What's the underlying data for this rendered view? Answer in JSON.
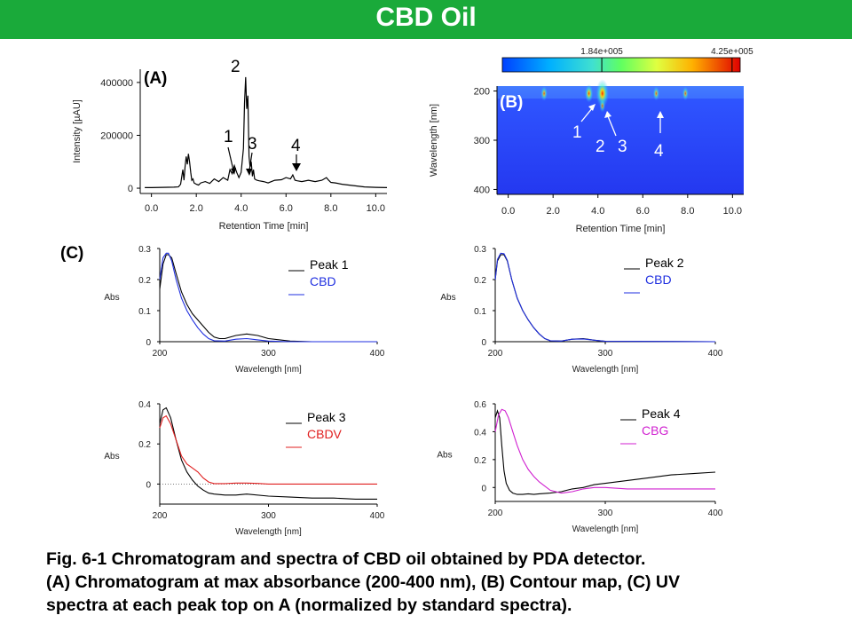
{
  "title": "CBD Oil",
  "caption": {
    "line1": "Fig. 6-1  Chromatogram and spectra of CBD oil obtained by PDA detector.",
    "line2": "(A) Chromatogram at max absorbance (200-400 nm), (B) Contour map, (C) UV",
    "line3": "spectra at each peak top on A (normalized by standard spectra)."
  },
  "panel_a": {
    "tag": "(A)",
    "peak_labels": [
      "1",
      "2",
      "3",
      "4"
    ],
    "colors": {
      "trace": "#000000"
    }
  },
  "panel_b": {
    "tag": "(B)",
    "colorbar_ticks": [
      "1.84e+005",
      "4.25e+005"
    ],
    "peak_labels": [
      "1",
      "2",
      "3",
      "4"
    ]
  },
  "panel_c": {
    "tag": "(C)"
  },
  "chart_data": [
    {
      "id": "chromatogram",
      "type": "line",
      "xlabel": "Retention Time [min]",
      "ylabel": "Intensity [µAU]",
      "xlim": [
        -0.5,
        10.5
      ],
      "ylim": [
        -20000,
        450000
      ],
      "xticks": [
        "0.0",
        "2.0",
        "4.0",
        "6.0",
        "8.0",
        "10.0"
      ],
      "yticks": [
        "0",
        "200000",
        "400000"
      ],
      "ytick_values": [
        0,
        200000,
        400000
      ],
      "xtick_values": [
        0,
        2,
        4,
        6,
        8,
        10
      ],
      "grid": false,
      "x": [
        -0.3,
        0.0,
        0.5,
        1.0,
        1.2,
        1.3,
        1.4,
        1.45,
        1.5,
        1.55,
        1.6,
        1.65,
        1.7,
        1.75,
        1.8,
        1.85,
        1.9,
        2.0,
        2.1,
        2.2,
        2.4,
        2.6,
        2.8,
        3.0,
        3.2,
        3.4,
        3.5,
        3.6,
        3.7,
        3.8,
        3.9,
        4.0,
        4.1,
        4.15,
        4.2,
        4.25,
        4.3,
        4.35,
        4.4,
        4.45,
        4.5,
        4.55,
        4.6,
        4.7,
        4.8,
        5.0,
        5.2,
        5.5,
        5.8,
        6.0,
        6.2,
        6.3,
        6.4,
        6.5,
        6.7,
        7.0,
        7.3,
        7.6,
        7.8,
        7.9,
        8.0,
        8.2,
        8.5,
        9.0,
        9.5,
        10.0,
        10.5
      ],
      "y": [
        2000,
        2000,
        3000,
        4000,
        5000,
        15000,
        70000,
        30000,
        80000,
        120000,
        90000,
        130000,
        100000,
        60000,
        30000,
        35000,
        20000,
        15000,
        12000,
        20000,
        25000,
        18000,
        35000,
        25000,
        40000,
        30000,
        70000,
        55000,
        85000,
        60000,
        40000,
        60000,
        150000,
        320000,
        420000,
        300000,
        350000,
        120000,
        80000,
        100000,
        45000,
        70000,
        35000,
        30000,
        28000,
        25000,
        20000,
        30000,
        32000,
        40000,
        35000,
        50000,
        30000,
        28000,
        25000,
        30000,
        25000,
        30000,
        40000,
        30000,
        22000,
        20000,
        15000,
        10000,
        5000,
        3000,
        2000
      ]
    },
    {
      "id": "contour",
      "type": "heatmap",
      "xlabel": "Retention Time [min]",
      "ylabel": "Wavelength [nm]",
      "xlim": [
        -0.5,
        10.5
      ],
      "ylim": [
        190,
        410
      ],
      "xticks": [
        "0.0",
        "2.0",
        "4.0",
        "6.0",
        "8.0",
        "10.0"
      ],
      "yticks": [
        "200",
        "300",
        "400"
      ],
      "xtick_values": [
        0,
        2,
        4,
        6,
        8,
        10
      ],
      "ytick_values": [
        200,
        300,
        400
      ],
      "colorbar_range": [
        0,
        440000.0
      ],
      "colorbar_ticks": [
        184000.0,
        425000.0
      ],
      "hotspots": [
        {
          "x": 4.2,
          "y": 205,
          "value": 440000.0
        },
        {
          "x": 3.6,
          "y": 205,
          "value": 230000.0
        },
        {
          "x": 1.6,
          "y": 205,
          "value": 160000.0
        },
        {
          "x": 4.2,
          "y": 230,
          "value": 130000.0
        },
        {
          "x": 6.6,
          "y": 205,
          "value": 150000.0
        },
        {
          "x": 7.9,
          "y": 205,
          "value": 140000.0
        }
      ]
    },
    {
      "id": "uv-peak1",
      "type": "line",
      "xlabel": "Wavelength [nm]",
      "ylabel": "Abs",
      "xlim": [
        200,
        400
      ],
      "ylim": [
        0,
        0.3
      ],
      "xticks": [
        "200",
        "300",
        "400"
      ],
      "yticks": [
        "0",
        "0.1",
        "0.2",
        "0.3"
      ],
      "xtick_values": [
        200,
        300,
        400
      ],
      "ytick_values": [
        0,
        0.1,
        0.2,
        0.3
      ],
      "series": [
        {
          "name": "Peak 1",
          "color": "#000000",
          "x": [
            200,
            203,
            206,
            208,
            211,
            215,
            220,
            225,
            230,
            235,
            240,
            245,
            250,
            255,
            260,
            270,
            280,
            290,
            300,
            320,
            340,
            360,
            400
          ],
          "y": [
            0.17,
            0.25,
            0.28,
            0.28,
            0.27,
            0.22,
            0.16,
            0.12,
            0.09,
            0.07,
            0.05,
            0.03,
            0.015,
            0.01,
            0.01,
            0.02,
            0.025,
            0.02,
            0.01,
            0.002,
            0,
            0,
            0
          ]
        },
        {
          "name": "CBD",
          "color": "#1f2fe0",
          "x": [
            200,
            203,
            206,
            208,
            211,
            215,
            220,
            225,
            230,
            235,
            240,
            245,
            250,
            260,
            270,
            280,
            290,
            300,
            320,
            340,
            400
          ],
          "y": [
            0.2,
            0.27,
            0.285,
            0.285,
            0.26,
            0.2,
            0.14,
            0.1,
            0.07,
            0.045,
            0.025,
            0.01,
            0.003,
            0.002,
            0.008,
            0.01,
            0.006,
            0.002,
            0,
            0,
            0
          ]
        }
      ]
    },
    {
      "id": "uv-peak2",
      "type": "line",
      "xlabel": "Wavelength [nm]",
      "ylabel": "Abs",
      "xlim": [
        200,
        400
      ],
      "ylim": [
        0,
        0.3
      ],
      "xticks": [
        "200",
        "300",
        "400"
      ],
      "yticks": [
        "0",
        "0.1",
        "0.2",
        "0.3"
      ],
      "xtick_values": [
        200,
        300,
        400
      ],
      "ytick_values": [
        0,
        0.1,
        0.2,
        0.3
      ],
      "series": [
        {
          "name": "Peak 2",
          "color": "#000000",
          "x": [
            200,
            202,
            205,
            208,
            211,
            215,
            220,
            225,
            230,
            235,
            240,
            245,
            250,
            260,
            270,
            280,
            290,
            300,
            400
          ],
          "y": [
            0.2,
            0.26,
            0.28,
            0.28,
            0.26,
            0.2,
            0.14,
            0.1,
            0.07,
            0.045,
            0.025,
            0.01,
            0.003,
            0.002,
            0.008,
            0.01,
            0.005,
            0.001,
            0
          ]
        },
        {
          "name": "CBD",
          "color": "#1f2fe0",
          "x": [
            200,
            202,
            205,
            208,
            211,
            215,
            220,
            225,
            230,
            235,
            240,
            245,
            250,
            260,
            270,
            280,
            290,
            300,
            400
          ],
          "y": [
            0.2,
            0.265,
            0.285,
            0.283,
            0.262,
            0.2,
            0.14,
            0.1,
            0.07,
            0.045,
            0.025,
            0.01,
            0.003,
            0.002,
            0.008,
            0.009,
            0.005,
            0.001,
            0
          ]
        }
      ]
    },
    {
      "id": "uv-peak3",
      "type": "line",
      "xlabel": "Wavelength [nm]",
      "ylabel": "Abs",
      "xlim": [
        200,
        400
      ],
      "ylim": [
        -0.1,
        0.4
      ],
      "xticks": [
        "200",
        "300",
        "400"
      ],
      "yticks": [
        "0",
        "0.2",
        "0.4"
      ],
      "xtick_values": [
        200,
        300,
        400
      ],
      "ytick_values": [
        0,
        0.2,
        0.4
      ],
      "zero_line": true,
      "series": [
        {
          "name": "Peak 3",
          "color": "#000000",
          "x": [
            200,
            203,
            206,
            210,
            215,
            220,
            225,
            230,
            235,
            240,
            245,
            250,
            260,
            270,
            280,
            300,
            320,
            340,
            360,
            380,
            400
          ],
          "y": [
            0.3,
            0.37,
            0.38,
            0.33,
            0.22,
            0.12,
            0.06,
            0.02,
            -0.01,
            -0.03,
            -0.045,
            -0.05,
            -0.055,
            -0.055,
            -0.05,
            -0.06,
            -0.065,
            -0.07,
            -0.07,
            -0.075,
            -0.075
          ]
        },
        {
          "name": "CBDV",
          "color": "#e01f1f",
          "x": [
            200,
            203,
            206,
            210,
            215,
            220,
            225,
            230,
            235,
            240,
            245,
            250,
            260,
            270,
            280,
            290,
            300,
            400
          ],
          "y": [
            0.28,
            0.33,
            0.34,
            0.3,
            0.22,
            0.14,
            0.1,
            0.08,
            0.06,
            0.03,
            0.01,
            0.002,
            0.002,
            0.005,
            0.005,
            0.003,
            0,
            0
          ]
        }
      ]
    },
    {
      "id": "uv-peak4",
      "type": "line",
      "xlabel": "Wavelength [nm]",
      "ylabel": "Abs",
      "xlim": [
        200,
        400
      ],
      "ylim": [
        -0.1,
        0.6
      ],
      "xticks": [
        "200",
        "300",
        "400"
      ],
      "yticks": [
        "0",
        "0.2",
        "0.4",
        "0.6"
      ],
      "xtick_values": [
        200,
        300,
        400
      ],
      "ytick_values": [
        0,
        0.2,
        0.4,
        0.6
      ],
      "series": [
        {
          "name": "Peak 4",
          "color": "#000000",
          "x": [
            200,
            202,
            204,
            206,
            208,
            210,
            213,
            216,
            220,
            225,
            230,
            235,
            240,
            250,
            260,
            270,
            280,
            290,
            300,
            320,
            340,
            360,
            380,
            400
          ],
          "y": [
            0.5,
            0.55,
            0.5,
            0.3,
            0.12,
            0.03,
            -0.02,
            -0.04,
            -0.05,
            -0.05,
            -0.045,
            -0.05,
            -0.045,
            -0.04,
            -0.03,
            -0.01,
            0.0,
            0.02,
            0.03,
            0.05,
            0.07,
            0.09,
            0.1,
            0.11
          ]
        },
        {
          "name": "CBG",
          "color": "#d020d0",
          "x": [
            200,
            203,
            206,
            209,
            212,
            216,
            220,
            225,
            230,
            235,
            240,
            245,
            250,
            260,
            270,
            280,
            290,
            300,
            320,
            340,
            360,
            380,
            400
          ],
          "y": [
            0.4,
            0.52,
            0.56,
            0.55,
            0.5,
            0.4,
            0.3,
            0.2,
            0.13,
            0.08,
            0.04,
            0.01,
            -0.02,
            -0.04,
            -0.03,
            -0.01,
            0,
            0,
            -0.01,
            -0.01,
            -0.01,
            -0.01,
            -0.01
          ]
        }
      ]
    }
  ]
}
